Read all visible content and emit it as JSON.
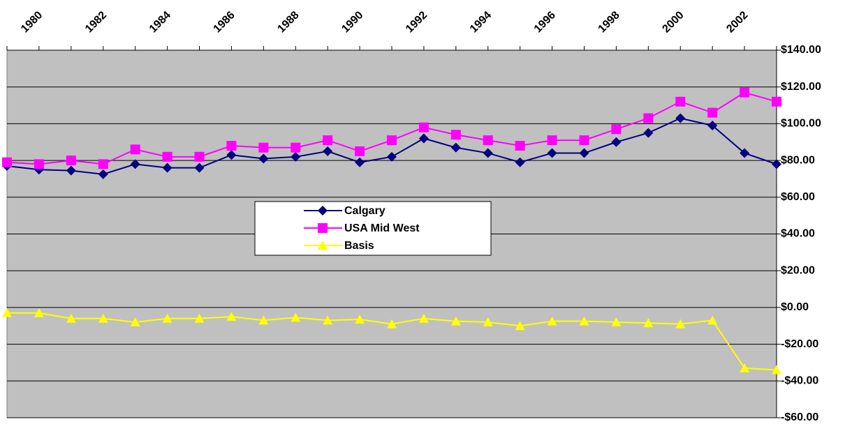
{
  "chart_data": {
    "type": "line",
    "categories": [
      null,
      "1980",
      null,
      "1982",
      null,
      "1984",
      null,
      "1986",
      null,
      "1988",
      null,
      "1990",
      null,
      "1992",
      null,
      "1994",
      null,
      "1996",
      null,
      "1998",
      null,
      "2000",
      null,
      "2002",
      null
    ],
    "series": [
      {
        "name": "Calgary",
        "color": "#000080",
        "marker": "diamond",
        "values": [
          77,
          75,
          74.5,
          72.5,
          78,
          76,
          76,
          83,
          81,
          82,
          85,
          79,
          82,
          92,
          87,
          84,
          79,
          84,
          84,
          90,
          95,
          103,
          99,
          84,
          78
        ]
      },
      {
        "name": "USA Mid West",
        "color": "#ff00ff",
        "marker": "square",
        "values": [
          79,
          78,
          80,
          78,
          86,
          82,
          82,
          88,
          87,
          87,
          91,
          85,
          91,
          98,
          94,
          91,
          88,
          91,
          91,
          97,
          103,
          112,
          106,
          117,
          112
        ]
      },
      {
        "name": "Basis",
        "color": "#ffff00",
        "marker": "triangle",
        "values": [
          -3,
          -3,
          -6,
          -6,
          -8,
          -6,
          -6,
          -5,
          -7,
          -5.5,
          -7,
          -6.5,
          -9,
          -6,
          -7.5,
          -8,
          -10,
          -7.5,
          -7.5,
          -8,
          -8.5,
          -9,
          -7,
          -33,
          -34
        ]
      }
    ],
    "ylim": [
      -60,
      140
    ],
    "yticks": [
      {
        "value": -60,
        "label": "-$60.00"
      },
      {
        "value": -40,
        "label": "-$40.00"
      },
      {
        "value": -20,
        "label": "-$20.00"
      },
      {
        "value": 0,
        "label": "$0.00"
      },
      {
        "value": 20,
        "label": "$20.00"
      },
      {
        "value": 40,
        "label": "$40.00"
      },
      {
        "value": 60,
        "label": "$60.00"
      },
      {
        "value": 80,
        "label": "$80.00"
      },
      {
        "value": 100,
        "label": "$100.00"
      },
      {
        "value": 120,
        "label": "$120.00"
      },
      {
        "value": 140,
        "label": "$140.00"
      }
    ],
    "grid": true,
    "legend": "center",
    "plot_background": "#c0c0c0"
  }
}
